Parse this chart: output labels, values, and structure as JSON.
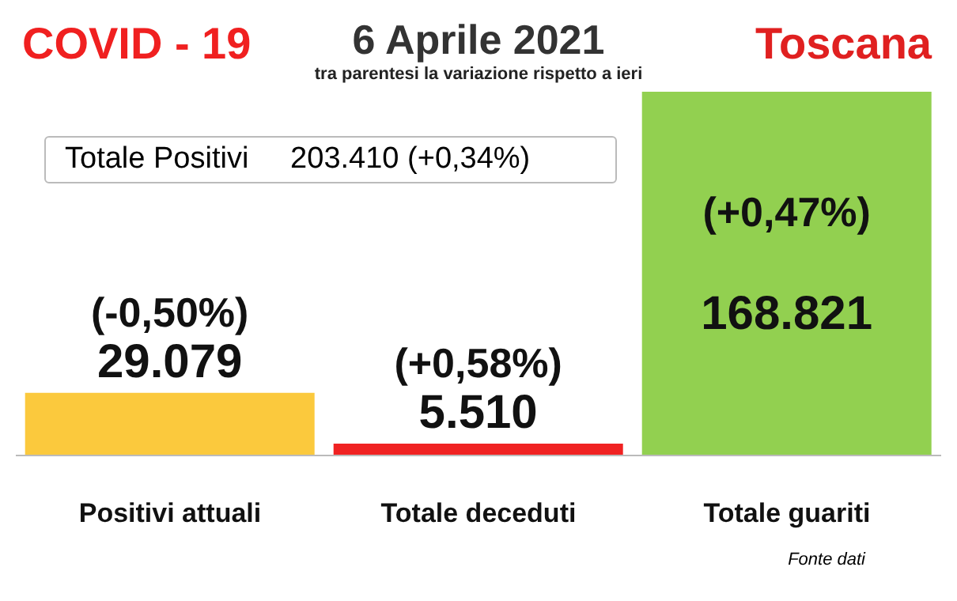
{
  "chart_data": {
    "type": "bar",
    "title": "6 Aprile 2021",
    "subtitle": "tra parentesi la variazione rispetto a ieri",
    "categories": [
      "Positivi attuali",
      "Totale deceduti",
      "Totale guariti"
    ],
    "values": [
      29079,
      5510,
      168821
    ],
    "colors": [
      "#fbc93d",
      "#f02222",
      "#92d050"
    ],
    "value_labels": [
      "29.079",
      "5.510",
      "168.821"
    ],
    "annotations": [
      "COVID - 19",
      "Toscana",
      "Totale Positivi     203.410 (+0,34%)",
      "Fonte dati",
      "(-0,50%)",
      "(+0,58%)",
      "(+0,47%)"
    ]
  }
}
